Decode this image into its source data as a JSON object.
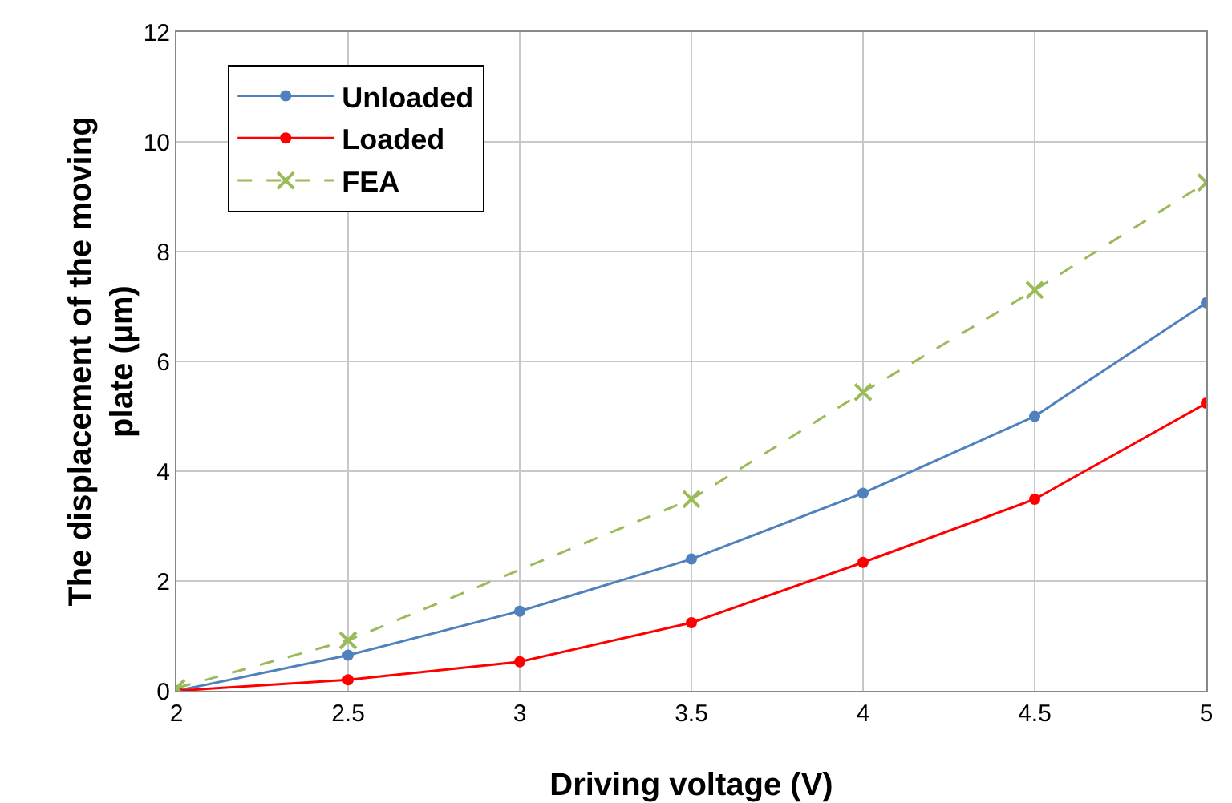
{
  "chart_data": {
    "type": "line",
    "xlabel": "Driving voltage (V)",
    "ylabel": "The displacement of the moving plate (µm)",
    "xlim": [
      2,
      5
    ],
    "xticks": [
      2,
      2.5,
      3,
      3.5,
      4,
      4.5,
      5
    ],
    "ylim": [
      0,
      12
    ],
    "yticks": [
      0,
      2,
      4,
      6,
      8,
      10,
      12
    ],
    "grid": true,
    "legend": "top left",
    "series": [
      {
        "name": "Unloaded",
        "color": "#4f81bd",
        "marker": "circle",
        "line_style": "solid",
        "x": [
          2,
          2.5,
          3,
          3.5,
          4,
          4.5,
          5
        ],
        "values": [
          0,
          0.65,
          1.45,
          2.4,
          3.6,
          5.0,
          7.07
        ]
      },
      {
        "name": "Loaded",
        "color": "#ff0000",
        "marker": "circle",
        "line_style": "solid",
        "x": [
          2,
          2.5,
          3,
          3.5,
          4,
          4.5,
          5
        ],
        "values": [
          0,
          0.2,
          0.53,
          1.24,
          2.34,
          3.49,
          5.24
        ]
      },
      {
        "name": "FEA",
        "color": "#9bbb59",
        "marker": "cross",
        "line_style": "dashed",
        "x": [
          2,
          2.5,
          3.5,
          4,
          4.5,
          5
        ],
        "values": [
          0.05,
          0.92,
          3.49,
          5.44,
          7.3,
          9.26
        ]
      }
    ]
  }
}
